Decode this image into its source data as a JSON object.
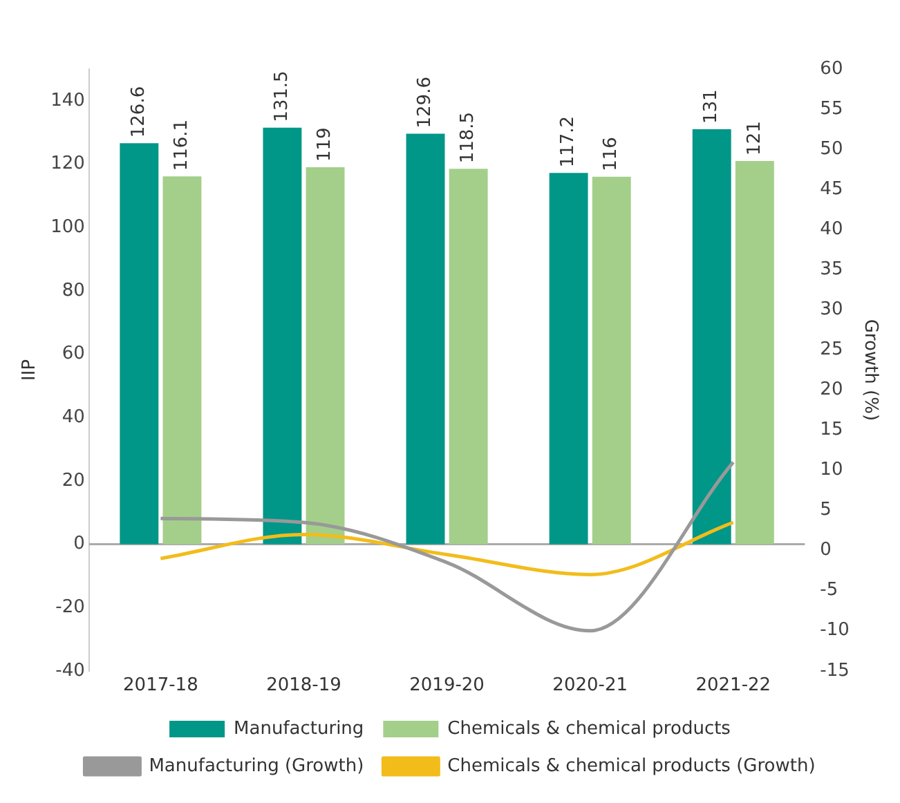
{
  "chart_data": {
    "type": "bar",
    "ylabel": "IIP",
    "y2label": "Growth (%)",
    "categories": [
      "2017-18",
      "2018-19",
      "2019-20",
      "2020-21",
      "2021-22"
    ],
    "series": [
      {
        "name": "Manufacturing",
        "color": "#009688",
        "values": [
          126.6,
          131.5,
          129.6,
          117.2,
          131
        ],
        "value_labels": [
          "126.6",
          "131.5",
          "129.6",
          "117.2",
          "131"
        ]
      },
      {
        "name": "Chemicals & chemical products",
        "color": "#a3cf8a",
        "values": [
          116.1,
          119,
          118.5,
          116,
          121
        ],
        "value_labels": [
          "116.1",
          "119",
          "118.5",
          "116",
          "121"
        ]
      },
      {
        "name": "Manufacturing (Growth)",
        "type": "line",
        "axis": "y2",
        "color": "#999999",
        "values": [
          4,
          3.5,
          -1.5,
          -10,
          11
        ]
      },
      {
        "name": "Chemicals & chemical products (Growth)",
        "type": "line",
        "axis": "y2",
        "color": "#f2bc1b",
        "values": [
          -1,
          2,
          -0.5,
          -3,
          3.5
        ]
      }
    ],
    "ylim": [
      -40,
      150
    ],
    "yticks": [
      -40,
      -20,
      0,
      20,
      40,
      60,
      80,
      100,
      120,
      140
    ],
    "y2lim": [
      -15,
      60
    ],
    "y2ticks": [
      -15,
      -10,
      -5,
      0,
      5,
      10,
      15,
      20,
      25,
      30,
      35,
      40,
      45,
      50,
      55,
      60
    ],
    "ref_lines": [
      {
        "axis": "y",
        "value": 0,
        "color": "#aaaaaa"
      }
    ],
    "grid": false,
    "legend": "bottom",
    "marker": "none",
    "line_style": "solid"
  }
}
